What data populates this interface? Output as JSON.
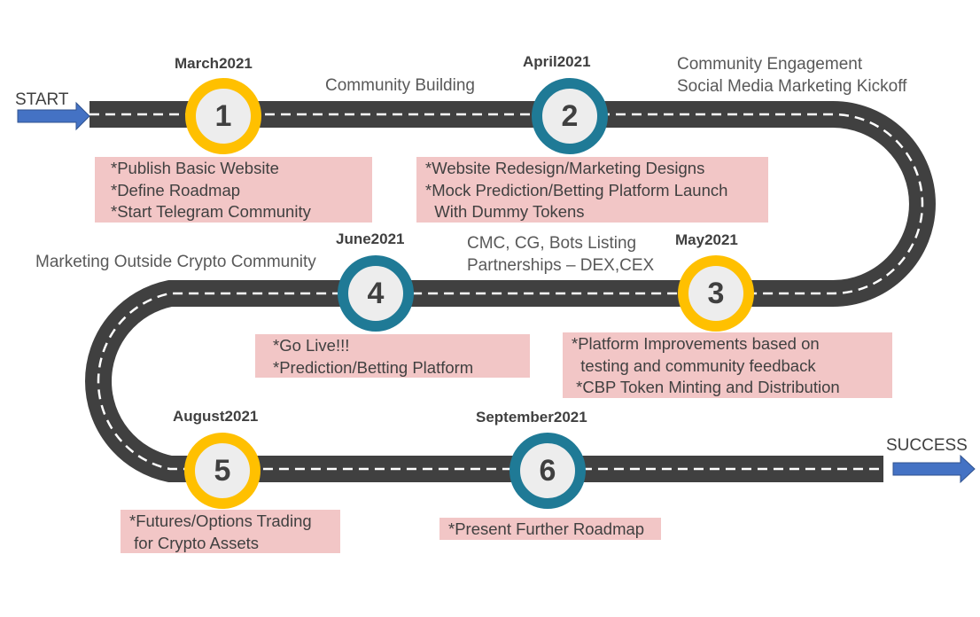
{
  "colors": {
    "road": "#404040",
    "lane_dash": "#ffffff",
    "milestone_gold": "#ffc000",
    "milestone_teal": "#1f7a96",
    "note_fill": "#f2c6c6",
    "arrow_blue": "#4472c4"
  },
  "ends": {
    "start": "START",
    "success": "SUCCESS"
  },
  "milestones": [
    {
      "number": "1",
      "month": "March2021"
    },
    {
      "number": "2",
      "month": "April2021"
    },
    {
      "number": "3",
      "month": "May2021"
    },
    {
      "number": "4",
      "month": "June2021"
    },
    {
      "number": "5",
      "month": "August2021"
    },
    {
      "number": "6",
      "month": "September2021"
    }
  ],
  "phase_labels": {
    "community_building": "Community Building",
    "engagement": [
      "Community Engagement",
      "Social Media Marketing Kickoff"
    ],
    "listing": [
      "CMC, CG, Bots Listing",
      "Partnerships – DEX,CEX"
    ],
    "marketing_outside": "Marketing Outside Crypto Community"
  },
  "notes": {
    "m1": [
      "*Publish Basic Website",
      "*Define Roadmap",
      "*Start Telegram Community"
    ],
    "m2": [
      "*Website Redesign/Marketing Designs",
      "*Mock Prediction/Betting Platform Launch",
      "  With Dummy Tokens"
    ],
    "m3": [
      "*Platform Improvements based on",
      "  testing and community feedback",
      " *CBP Token Minting and Distribution"
    ],
    "m4": [
      "*Go Live!!!",
      "*Prediction/Betting Platform"
    ],
    "m5": [
      "*Futures/Options Trading",
      " for Crypto Assets"
    ],
    "m6": [
      "*Present Further Roadmap"
    ]
  }
}
